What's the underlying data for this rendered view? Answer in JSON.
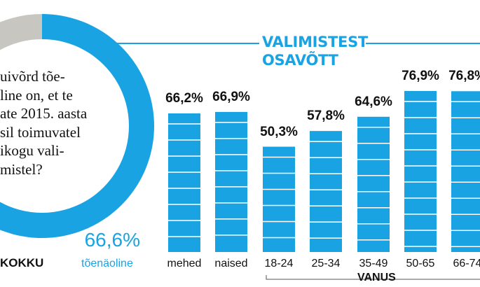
{
  "question_lines": [
    "uivõrd tõe-",
    "line on, et te",
    "ate 2015. aasta",
    "sil toimuvatel",
    "ikogu vali-",
    "mistel?"
  ],
  "total": {
    "label": "KOKKU",
    "value_text": "66,6%",
    "sub_label": "tõenäoline"
  },
  "chart_data": [
    {
      "type": "pie",
      "values": [
        66.6,
        33.4
      ],
      "colors": [
        "#1aa3e2",
        "#c8c6c0"
      ]
    },
    {
      "type": "bar",
      "title": "VALIMISTEST OSAVÕTT",
      "title_lines": [
        "VALIMISTEST",
        "OSAVÕTT"
      ],
      "categories": [
        "mehed",
        "naised",
        "18-24",
        "25-34",
        "35-49",
        "50-65",
        "66-74"
      ],
      "value_labels": [
        "66,2%",
        "66,9%",
        "50,3%",
        "57,8%",
        "64,6%",
        "76,9%",
        "76,8%"
      ],
      "values": [
        66.2,
        66.9,
        50.3,
        57.8,
        64.6,
        76.9,
        76.8
      ],
      "xlabel": "VANUS",
      "bar_color": "#1aa3e2",
      "grid": false
    }
  ]
}
